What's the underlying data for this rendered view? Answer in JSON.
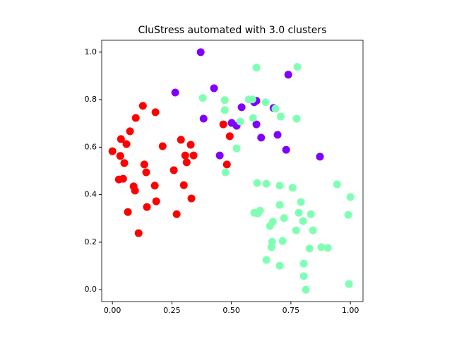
{
  "chart_data": {
    "type": "scatter",
    "title": "CluStress automated with 3.0 clusters",
    "xlim": [
      -0.045,
      1.053
    ],
    "ylim": [
      -0.05,
      1.05
    ],
    "xticks": [
      {
        "value": 0,
        "label": "0.00"
      },
      {
        "value": 0.25,
        "label": "0.25"
      },
      {
        "value": 0.5,
        "label": "0.50"
      },
      {
        "value": 0.75,
        "label": "0.75"
      },
      {
        "value": 1,
        "label": "1.00"
      }
    ],
    "yticks": [
      {
        "value": 0,
        "label": "0.0"
      },
      0.2,
      0.4,
      0.6,
      0.8,
      {
        "value": 1,
        "label": "1.0"
      }
    ],
    "series": [
      {
        "color": "#ff0000",
        "x": [
          0.0,
          0.033,
          0.036,
          0.05,
          0.074,
          0.098,
          0.128,
          0.181,
          0.211,
          0.059,
          0.027,
          0.045,
          0.134,
          0.142,
          0.089,
          0.095,
          0.178,
          0.184,
          0.145,
          0.065,
          0.11,
          0.258,
          0.288,
          0.306,
          0.312,
          0.329,
          0.341,
          0.3,
          0.332,
          0.27,
          0.466,
          0.493,
          0.481
        ],
        "values": [
          0.583,
          0.563,
          0.634,
          0.533,
          0.667,
          0.723,
          0.774,
          0.747,
          0.604,
          0.613,
          0.464,
          0.467,
          0.527,
          0.494,
          0.435,
          0.417,
          0.438,
          0.372,
          0.348,
          0.327,
          0.238,
          0.503,
          0.631,
          0.565,
          0.536,
          0.61,
          0.565,
          0.44,
          0.384,
          0.318,
          0.696,
          0.646,
          0.527
        ]
      },
      {
        "color": "#8000ff",
        "x": [
          0.371,
          0.427,
          0.264,
          0.383,
          0.501,
          0.522,
          0.543,
          0.596,
          0.605,
          0.605,
          0.625,
          0.677,
          0.739,
          0.694,
          0.73,
          0.872,
          0.451
        ],
        "values": [
          1.0,
          0.848,
          0.83,
          0.72,
          0.702,
          0.69,
          0.768,
          0.789,
          0.795,
          0.696,
          0.64,
          0.765,
          0.905,
          0.652,
          0.589,
          0.56,
          0.565
        ]
      },
      {
        "color": "#80ffb4",
        "x": [
          0.605,
          0.777,
          0.38,
          0.472,
          0.472,
          0.573,
          0.588,
          0.644,
          0.685,
          0.707,
          0.774,
          0.591,
          0.537,
          0.522,
          0.475,
          0.608,
          0.647,
          0.703,
          0.757,
          0.944,
          1.0,
          0.792,
          0.703,
          0.596,
          0.611,
          0.62,
          0.783,
          0.834,
          0.721,
          0.674,
          0.662,
          0.772,
          0.843,
          0.801,
          0.991,
          0.671,
          0.715,
          0.668,
          0.828,
          0.878,
          0.905,
          0.647,
          0.703,
          0.804,
          0.804,
          0.813,
          0.994
        ],
        "values": [
          0.935,
          0.938,
          0.807,
          0.798,
          0.756,
          0.801,
          0.801,
          0.789,
          0.762,
          0.729,
          0.72,
          0.723,
          0.708,
          0.595,
          0.494,
          0.449,
          0.446,
          0.438,
          0.429,
          0.443,
          0.39,
          0.369,
          0.357,
          0.324,
          0.321,
          0.333,
          0.324,
          0.318,
          0.301,
          0.286,
          0.268,
          0.25,
          0.25,
          0.289,
          0.315,
          0.202,
          0.205,
          0.179,
          0.173,
          0.179,
          0.176,
          0.125,
          0.101,
          0.11,
          0.057,
          0.0,
          0.024
        ]
      }
    ]
  }
}
